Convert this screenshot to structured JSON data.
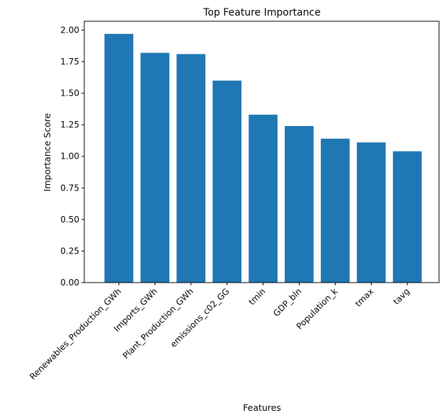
{
  "chart_data": {
    "type": "bar",
    "title": "Top Feature Importance",
    "xlabel": "Features",
    "ylabel": "Importance Score",
    "categories": [
      "Renewables_Production_GWh",
      "Imports_GWh",
      "Plant_Production_GWh",
      "emissions_c02_GG",
      "tmin",
      "GDP_bln",
      "Population_k",
      "tmax",
      "tavg"
    ],
    "values": [
      1.97,
      1.82,
      1.81,
      1.6,
      1.33,
      1.24,
      1.14,
      1.11,
      1.04
    ],
    "ylim": [
      0,
      2.07
    ],
    "yticks": [
      "0.00",
      "0.25",
      "0.50",
      "0.75",
      "1.00",
      "1.25",
      "1.50",
      "1.75",
      "2.00"
    ],
    "bar_color": "#1f77b4",
    "grid": false,
    "legend": "none"
  }
}
